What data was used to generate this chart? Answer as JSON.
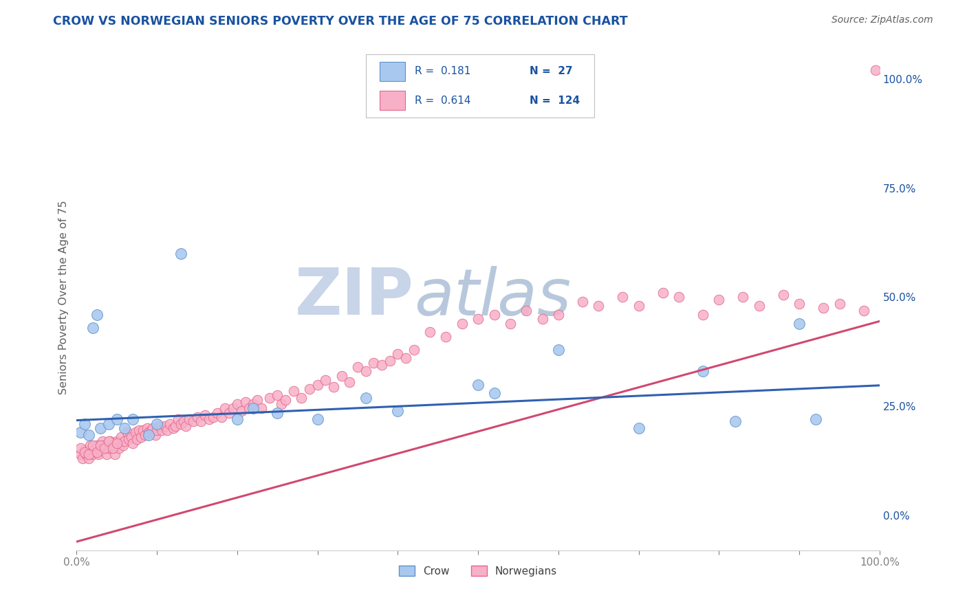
{
  "title": "CROW VS NORWEGIAN SENIORS POVERTY OVER THE AGE OF 75 CORRELATION CHART",
  "source": "Source: ZipAtlas.com",
  "ylabel": "Seniors Poverty Over the Age of 75",
  "xlim": [
    0,
    1
  ],
  "ylim": [
    -0.08,
    1.08
  ],
  "background_color": "#ffffff",
  "grid_color": "#c8c8c8",
  "watermark_zip": "ZIP",
  "watermark_atlas": "atlas",
  "watermark_color_zip": "#c8d4e8",
  "watermark_color_atlas": "#b8c8dc",
  "legend_r1": "R =  0.181",
  "legend_n1": "N =  27",
  "legend_r2": "R =  0.614",
  "legend_n2": "N =  124",
  "crow_color": "#a8c8f0",
  "crow_edge_color": "#6090c8",
  "norwegian_color": "#f8b0c8",
  "norwegian_edge_color": "#e06888",
  "trend_crow_color": "#3060b0",
  "trend_norwegian_color": "#d04870",
  "crow_x": [
    0.005,
    0.01,
    0.015,
    0.02,
    0.025,
    0.03,
    0.04,
    0.05,
    0.06,
    0.07,
    0.09,
    0.1,
    0.13,
    0.2,
    0.22,
    0.25,
    0.3,
    0.36,
    0.4,
    0.5,
    0.52,
    0.6,
    0.7,
    0.78,
    0.82,
    0.9,
    0.92
  ],
  "crow_y": [
    0.19,
    0.21,
    0.185,
    0.43,
    0.46,
    0.2,
    0.21,
    0.22,
    0.2,
    0.22,
    0.185,
    0.21,
    0.6,
    0.22,
    0.245,
    0.235,
    0.22,
    0.27,
    0.24,
    0.3,
    0.28,
    0.38,
    0.2,
    0.33,
    0.215,
    0.44,
    0.22
  ],
  "norwegian_x": [
    0.005,
    0.007,
    0.01,
    0.012,
    0.015,
    0.017,
    0.02,
    0.022,
    0.025,
    0.027,
    0.03,
    0.032,
    0.035,
    0.037,
    0.04,
    0.042,
    0.045,
    0.048,
    0.05,
    0.053,
    0.055,
    0.058,
    0.06,
    0.063,
    0.065,
    0.068,
    0.07,
    0.073,
    0.075,
    0.078,
    0.08,
    0.083,
    0.085,
    0.088,
    0.09,
    0.093,
    0.095,
    0.098,
    0.1,
    0.103,
    0.106,
    0.11,
    0.113,
    0.116,
    0.12,
    0.123,
    0.126,
    0.13,
    0.133,
    0.136,
    0.14,
    0.145,
    0.15,
    0.155,
    0.16,
    0.165,
    0.17,
    0.175,
    0.18,
    0.185,
    0.19,
    0.195,
    0.2,
    0.205,
    0.21,
    0.215,
    0.22,
    0.225,
    0.23,
    0.24,
    0.25,
    0.255,
    0.26,
    0.27,
    0.28,
    0.29,
    0.3,
    0.31,
    0.32,
    0.33,
    0.34,
    0.35,
    0.36,
    0.37,
    0.38,
    0.39,
    0.4,
    0.41,
    0.42,
    0.44,
    0.46,
    0.48,
    0.5,
    0.52,
    0.54,
    0.56,
    0.58,
    0.6,
    0.63,
    0.65,
    0.68,
    0.7,
    0.73,
    0.75,
    0.78,
    0.8,
    0.83,
    0.85,
    0.88,
    0.9,
    0.93,
    0.95,
    0.98,
    0.995,
    0.005,
    0.01,
    0.015,
    0.02,
    0.025,
    0.03,
    0.035,
    0.04,
    0.045,
    0.05
  ],
  "norwegian_y": [
    0.14,
    0.13,
    0.15,
    0.14,
    0.13,
    0.16,
    0.14,
    0.15,
    0.16,
    0.14,
    0.15,
    0.17,
    0.16,
    0.14,
    0.155,
    0.17,
    0.16,
    0.14,
    0.17,
    0.155,
    0.18,
    0.16,
    0.17,
    0.19,
    0.175,
    0.18,
    0.165,
    0.19,
    0.175,
    0.195,
    0.18,
    0.195,
    0.185,
    0.2,
    0.19,
    0.195,
    0.2,
    0.185,
    0.195,
    0.205,
    0.195,
    0.205,
    0.195,
    0.21,
    0.2,
    0.205,
    0.22,
    0.21,
    0.215,
    0.205,
    0.22,
    0.215,
    0.225,
    0.215,
    0.23,
    0.22,
    0.225,
    0.235,
    0.225,
    0.245,
    0.235,
    0.245,
    0.255,
    0.24,
    0.26,
    0.245,
    0.255,
    0.265,
    0.245,
    0.27,
    0.275,
    0.255,
    0.265,
    0.285,
    0.27,
    0.29,
    0.3,
    0.31,
    0.295,
    0.32,
    0.305,
    0.34,
    0.33,
    0.35,
    0.345,
    0.355,
    0.37,
    0.36,
    0.38,
    0.42,
    0.41,
    0.44,
    0.45,
    0.46,
    0.44,
    0.47,
    0.45,
    0.46,
    0.49,
    0.48,
    0.5,
    0.48,
    0.51,
    0.5,
    0.46,
    0.495,
    0.5,
    0.48,
    0.505,
    0.485,
    0.475,
    0.485,
    0.47,
    1.02,
    0.155,
    0.145,
    0.14,
    0.16,
    0.145,
    0.16,
    0.155,
    0.17,
    0.155,
    0.165
  ],
  "crow_trend_x": [
    0.0,
    1.0
  ],
  "crow_trend_y": [
    0.218,
    0.298
  ],
  "norwegian_trend_x": [
    0.0,
    1.0
  ],
  "norwegian_trend_y": [
    -0.06,
    0.445
  ],
  "right_yticks": [
    0.0,
    0.25,
    0.5,
    0.75,
    1.0
  ],
  "right_ytick_labels": [
    "0.0%",
    "25.0%",
    "50.0%",
    "75.0%",
    "100.0%"
  ],
  "title_color": "#1a52a0",
  "axis_label_color": "#606060",
  "tick_color": "#808080",
  "legend_text_color": "#404040",
  "legend_value_color": "#1a52a0"
}
